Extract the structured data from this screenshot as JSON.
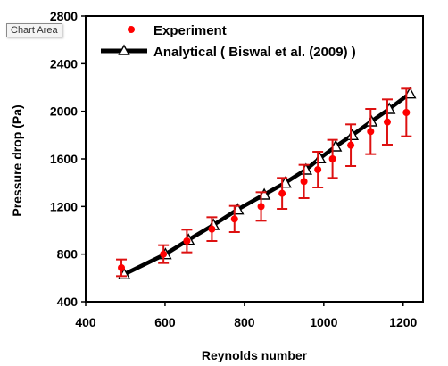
{
  "tooltip": {
    "text": "Chart Area"
  },
  "colors": {
    "experiment": "#ff0000",
    "analytical": "#000000",
    "errorbar": "#dd1111"
  },
  "chart_data": {
    "type": "scatter",
    "title": "",
    "xlabel": "Reynolds number",
    "ylabel": "Pressure drop  (Pa)",
    "xlim": [
      400,
      1250
    ],
    "ylim": [
      400,
      2800
    ],
    "xticks": [
      400,
      600,
      800,
      1000,
      1200
    ],
    "yticks": [
      400,
      800,
      1200,
      1600,
      2000,
      2400,
      2800
    ],
    "grid": false,
    "legend_position": "top-left",
    "series": [
      {
        "name": "Experiment",
        "kind": "markers",
        "marker": "circle",
        "x": [
          490,
          596,
          655,
          718,
          775,
          842,
          895,
          950,
          985,
          1022,
          1068,
          1118,
          1160,
          1208
        ],
        "y": [
          685,
          800,
          910,
          1010,
          1095,
          1200,
          1310,
          1410,
          1510,
          1600,
          1715,
          1830,
          1910,
          1990
        ],
        "err": [
          70,
          75,
          95,
          100,
          110,
          120,
          130,
          140,
          150,
          160,
          175,
          190,
          190,
          200
        ]
      },
      {
        "name": "Analytical ( Biswal et al. (2009) )",
        "kind": "line",
        "marker": "triangle",
        "x": [
          497,
          601,
          659,
          722,
          783,
          850,
          903,
          955,
          990,
          1030,
          1072,
          1120,
          1165,
          1217
        ],
        "y": [
          630,
          800,
          920,
          1045,
          1175,
          1300,
          1400,
          1510,
          1605,
          1705,
          1800,
          1915,
          2020,
          2150
        ]
      }
    ]
  }
}
